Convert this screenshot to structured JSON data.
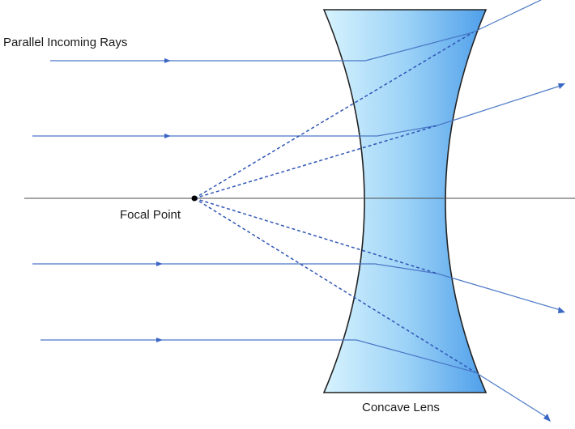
{
  "labels": {
    "incoming_rays": "Parallel Incoming Rays",
    "focal_point": "Focal Point",
    "lens": "Concave Lens"
  },
  "colors": {
    "ray": "#4a78c6",
    "dashed_ray": "#2f55b5",
    "lens_light": "#cfeefd",
    "lens_dark": "#5aa8ee",
    "axis": "#4a4a4a"
  },
  "icons": {
    "ray_arrow": "triangle-arrow-icon",
    "focal_dot": "point-icon"
  }
}
